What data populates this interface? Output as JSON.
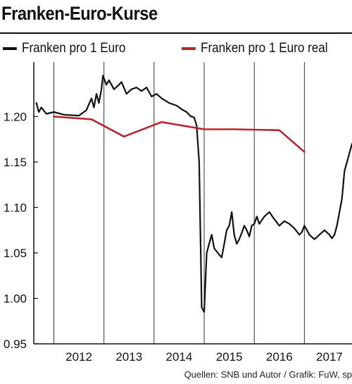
{
  "title": "Franken-Euro-Kurse",
  "source": "Quellen: SNB und Autor / Grafik: FuW, sp",
  "colors": {
    "nominal": "#111111",
    "real": "#b8262e",
    "grid": "#333333"
  },
  "chart_data": {
    "type": "line",
    "title": "Franken-Euro-Kurse",
    "xlabel": "",
    "ylabel": "",
    "xlim": [
      2011.6,
      2017.95
    ],
    "ylim": [
      0.95,
      1.26
    ],
    "yticks": [
      0.95,
      1.0,
      1.05,
      1.1,
      1.15,
      1.2
    ],
    "ytick_labels": [
      "0.95",
      "1.00",
      "1.05",
      "1.10",
      "1.15",
      "1.20"
    ],
    "xgrid": [
      2012,
      2013,
      2014,
      2015,
      2016,
      2017
    ],
    "xtick_labels": [
      {
        "label": "2012",
        "x": 2012.5
      },
      {
        "label": "2013",
        "x": 2013.5
      },
      {
        "label": "2014",
        "x": 2014.5
      },
      {
        "label": "2015",
        "x": 2015.5
      },
      {
        "label": "2016",
        "x": 2016.5
      },
      {
        "label": "2017",
        "x": 2017.5
      }
    ],
    "legend_position": "top",
    "series": [
      {
        "name": "Franken pro 1 Euro",
        "color": "#111111",
        "x": [
          2011.65,
          2011.7,
          2011.75,
          2011.85,
          2012.0,
          2012.2,
          2012.5,
          2012.65,
          2012.75,
          2012.8,
          2012.85,
          2012.9,
          2012.95,
          2012.98,
          2013.05,
          2013.1,
          2013.2,
          2013.3,
          2013.35,
          2013.45,
          2013.55,
          2013.65,
          2013.75,
          2013.85,
          2013.95,
          2014.05,
          2014.15,
          2014.3,
          2014.45,
          2014.55,
          2014.65,
          2014.7,
          2014.72,
          2014.73,
          2014.76,
          2014.8,
          2014.85,
          2014.9,
          2014.95,
          2015.0,
          2015.05,
          2015.1,
          2015.15,
          2015.2,
          2015.3,
          2015.35,
          2015.4,
          2015.45,
          2015.5,
          2015.55,
          2015.6,
          2015.65,
          2015.7,
          2015.75,
          2015.8,
          2015.85,
          2015.9,
          2015.95,
          2016.0,
          2016.05,
          2016.1,
          2016.2,
          2016.3,
          2016.4,
          2016.5,
          2016.6,
          2016.7,
          2016.8,
          2016.9,
          2016.95,
          2017.0,
          2017.1,
          2017.2,
          2017.3,
          2017.4,
          2017.5,
          2017.55,
          2017.6,
          2017.65,
          2017.7,
          2017.75,
          2017.8,
          2017.85,
          2017.9,
          2017.95
        ],
        "y": [
          1.215,
          1.205,
          1.21,
          1.203,
          1.205,
          1.202,
          1.201,
          1.207,
          1.22,
          1.21,
          1.225,
          1.215,
          1.23,
          1.245,
          1.235,
          1.24,
          1.23,
          1.235,
          1.238,
          1.225,
          1.23,
          1.232,
          1.228,
          1.232,
          1.222,
          1.225,
          1.22,
          1.215,
          1.212,
          1.208,
          1.205,
          1.202,
          1.201,
          1.2,
          1.2,
          1.199,
          1.19,
          1.15,
          0.99,
          0.985,
          1.05,
          1.06,
          1.07,
          1.055,
          1.048,
          1.045,
          1.06,
          1.075,
          1.08,
          1.095,
          1.07,
          1.06,
          1.065,
          1.072,
          1.08,
          1.075,
          1.068,
          1.08,
          1.082,
          1.09,
          1.082,
          1.09,
          1.095,
          1.087,
          1.08,
          1.085,
          1.082,
          1.077,
          1.07,
          1.073,
          1.08,
          1.07,
          1.065,
          1.07,
          1.075,
          1.07,
          1.066,
          1.07,
          1.08,
          1.095,
          1.11,
          1.14,
          1.15,
          1.16,
          1.17
        ]
      },
      {
        "name": "Franken pro 1 Euro real",
        "color": "#b8262e",
        "x": [
          2012.0,
          2012.75,
          2013.4,
          2014.15,
          2015.0,
          2015.6,
          2016.5,
          2017.0
        ],
        "y": [
          1.2,
          1.197,
          1.178,
          1.194,
          1.186,
          1.186,
          1.185,
          1.161
        ]
      }
    ]
  }
}
